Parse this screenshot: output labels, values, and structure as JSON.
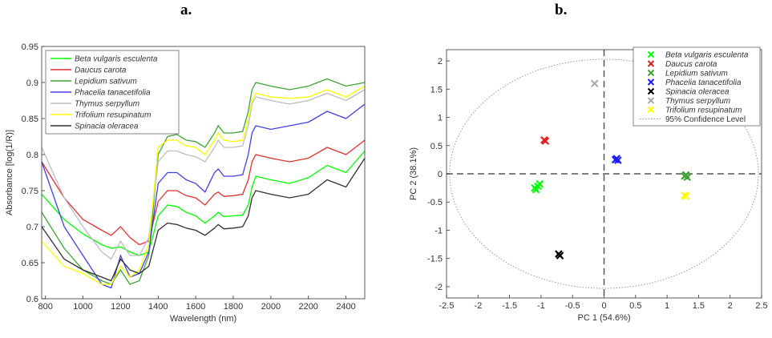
{
  "panels": {
    "a": "a.",
    "b": "b."
  },
  "chart_data": [
    {
      "type": "line",
      "xlabel": "Wavelength (nm)",
      "ylabel": "Absorbance [log(1/R)]",
      "xlim": [
        780,
        2500
      ],
      "ylim": [
        0.6,
        0.95
      ],
      "xticks": [
        800,
        1000,
        1200,
        1400,
        1600,
        1800,
        2000,
        2200,
        2400
      ],
      "yticks": [
        0.6,
        0.65,
        0.7,
        0.75,
        0.8,
        0.85,
        0.9,
        0.95
      ],
      "legend_position": "top-left",
      "series": [
        {
          "name": "Beta vulgaris esculenta",
          "color": "#00ff00",
          "x": [
            780,
            900,
            1000,
            1100,
            1150,
            1200,
            1250,
            1300,
            1350,
            1400,
            1450,
            1500,
            1550,
            1600,
            1650,
            1700,
            1720,
            1750,
            1800,
            1850,
            1880,
            1900,
            1920,
            2000,
            2100,
            2200,
            2300,
            2400,
            2500
          ],
          "y": [
            0.745,
            0.71,
            0.69,
            0.675,
            0.67,
            0.672,
            0.665,
            0.66,
            0.665,
            0.715,
            0.73,
            0.728,
            0.72,
            0.715,
            0.705,
            0.715,
            0.72,
            0.714,
            0.715,
            0.716,
            0.73,
            0.755,
            0.77,
            0.765,
            0.76,
            0.768,
            0.785,
            0.775,
            0.805
          ]
        },
        {
          "name": "Daucus carota",
          "color": "#e03030",
          "x": [
            780,
            900,
            1000,
            1100,
            1150,
            1200,
            1250,
            1300,
            1350,
            1400,
            1450,
            1500,
            1550,
            1600,
            1650,
            1700,
            1720,
            1750,
            1800,
            1850,
            1880,
            1900,
            1920,
            2000,
            2100,
            2200,
            2300,
            2400,
            2500
          ],
          "y": [
            0.79,
            0.74,
            0.71,
            0.695,
            0.688,
            0.7,
            0.685,
            0.675,
            0.68,
            0.735,
            0.75,
            0.75,
            0.743,
            0.74,
            0.73,
            0.745,
            0.748,
            0.742,
            0.743,
            0.745,
            0.765,
            0.79,
            0.8,
            0.795,
            0.79,
            0.795,
            0.81,
            0.8,
            0.82
          ]
        },
        {
          "name": "Lepidium sativum",
          "color": "#3fa335",
          "x": [
            780,
            900,
            1000,
            1100,
            1150,
            1200,
            1250,
            1300,
            1350,
            1400,
            1450,
            1500,
            1550,
            1600,
            1650,
            1700,
            1720,
            1750,
            1800,
            1850,
            1880,
            1900,
            1920,
            2000,
            2100,
            2200,
            2300,
            2400,
            2500
          ],
          "y": [
            0.72,
            0.67,
            0.64,
            0.625,
            0.62,
            0.64,
            0.62,
            0.625,
            0.66,
            0.8,
            0.825,
            0.828,
            0.82,
            0.818,
            0.81,
            0.83,
            0.84,
            0.83,
            0.83,
            0.832,
            0.86,
            0.89,
            0.9,
            0.895,
            0.89,
            0.895,
            0.905,
            0.895,
            0.9
          ]
        },
        {
          "name": "Phacelia tanacetifolia",
          "color": "#4040e0",
          "x": [
            780,
            900,
            1000,
            1100,
            1150,
            1200,
            1250,
            1300,
            1350,
            1400,
            1450,
            1500,
            1550,
            1600,
            1650,
            1700,
            1720,
            1750,
            1800,
            1850,
            1880,
            1900,
            1920,
            2000,
            2100,
            2200,
            2300,
            2400,
            2500
          ],
          "y": [
            0.79,
            0.7,
            0.66,
            0.62,
            0.615,
            0.66,
            0.63,
            0.635,
            0.665,
            0.76,
            0.775,
            0.775,
            0.765,
            0.76,
            0.748,
            0.775,
            0.78,
            0.77,
            0.77,
            0.772,
            0.8,
            0.83,
            0.84,
            0.835,
            0.84,
            0.845,
            0.86,
            0.85,
            0.87
          ]
        },
        {
          "name": "Thymus serpyllum",
          "color": "#bdbdbd",
          "x": [
            780,
            900,
            1000,
            1100,
            1150,
            1200,
            1250,
            1300,
            1350,
            1400,
            1450,
            1500,
            1550,
            1600,
            1650,
            1700,
            1720,
            1750,
            1800,
            1850,
            1880,
            1900,
            1920,
            2000,
            2100,
            2200,
            2300,
            2400,
            2500
          ],
          "y": [
            0.81,
            0.74,
            0.7,
            0.665,
            0.655,
            0.68,
            0.66,
            0.66,
            0.685,
            0.79,
            0.805,
            0.805,
            0.8,
            0.797,
            0.79,
            0.81,
            0.82,
            0.81,
            0.81,
            0.812,
            0.84,
            0.87,
            0.88,
            0.875,
            0.87,
            0.875,
            0.885,
            0.875,
            0.89
          ]
        },
        {
          "name": "Trifolium resupinatum",
          "color": "#ffff00",
          "x": [
            780,
            900,
            1000,
            1100,
            1150,
            1200,
            1250,
            1300,
            1350,
            1400,
            1450,
            1500,
            1550,
            1600,
            1650,
            1700,
            1720,
            1750,
            1800,
            1850,
            1880,
            1900,
            1920,
            2000,
            2100,
            2200,
            2300,
            2400,
            2500
          ],
          "y": [
            0.68,
            0.645,
            0.635,
            0.62,
            0.62,
            0.645,
            0.63,
            0.64,
            0.675,
            0.81,
            0.82,
            0.82,
            0.812,
            0.81,
            0.8,
            0.82,
            0.83,
            0.82,
            0.818,
            0.82,
            0.85,
            0.875,
            0.885,
            0.88,
            0.878,
            0.88,
            0.89,
            0.88,
            0.895
          ]
        },
        {
          "name": "Spinacia oleracea",
          "color": "#303030",
          "x": [
            780,
            900,
            1000,
            1100,
            1150,
            1200,
            1250,
            1300,
            1350,
            1400,
            1450,
            1500,
            1550,
            1600,
            1650,
            1700,
            1720,
            1750,
            1800,
            1850,
            1880,
            1900,
            1920,
            2000,
            2100,
            2200,
            2300,
            2400,
            2500
          ],
          "y": [
            0.7,
            0.655,
            0.64,
            0.63,
            0.625,
            0.655,
            0.64,
            0.635,
            0.645,
            0.695,
            0.705,
            0.703,
            0.698,
            0.695,
            0.688,
            0.698,
            0.703,
            0.697,
            0.698,
            0.7,
            0.715,
            0.74,
            0.75,
            0.745,
            0.74,
            0.745,
            0.765,
            0.755,
            0.795
          ]
        }
      ]
    },
    {
      "type": "scatter",
      "xlabel": "PC 1 (54.6%)",
      "ylabel": "PC 2 (38.1%)",
      "xlim": [
        -2.5,
        2.5
      ],
      "ylim": [
        -2.2,
        2.2
      ],
      "xticks": [
        -2.5,
        -2,
        -1.5,
        -1,
        -0.5,
        0,
        0.5,
        1,
        1.5,
        2,
        2.5
      ],
      "yticks": [
        -2,
        -1.5,
        -1,
        -0.5,
        0,
        0.5,
        1,
        1.5,
        2
      ],
      "legend_position": "top-right",
      "confidence_ellipse": {
        "name": "95% Confidence Level",
        "rx": 2.45,
        "ry": 2.03
      },
      "series": [
        {
          "name": "Beta vulgaris esculenta",
          "color": "#00ff00",
          "points": [
            [
              -1.05,
              -0.22
            ],
            [
              -1.08,
              -0.28
            ],
            [
              -1.02,
              -0.18
            ],
            [
              -1.1,
              -0.25
            ]
          ]
        },
        {
          "name": "Daucus carota",
          "color": "#e02020",
          "points": [
            [
              -0.95,
              0.6
            ],
            [
              -0.93,
              0.58
            ]
          ]
        },
        {
          "name": "Lepidium sativum",
          "color": "#3fa335",
          "points": [
            [
              1.3,
              -0.02
            ],
            [
              1.32,
              -0.06
            ],
            [
              1.28,
              -0.04
            ]
          ]
        },
        {
          "name": "Phacelia tanacetifolia",
          "color": "#1a1aff",
          "points": [
            [
              0.2,
              0.27
            ],
            [
              0.22,
              0.24
            ],
            [
              0.18,
              0.25
            ]
          ]
        },
        {
          "name": "Spinacia oleracea",
          "color": "#000000",
          "points": [
            [
              -0.72,
              -1.42
            ],
            [
              -0.7,
              -1.45
            ]
          ]
        },
        {
          "name": "Thymus serpyllum",
          "color": "#aaaaaa",
          "points": [
            [
              -0.15,
              1.6
            ]
          ]
        },
        {
          "name": "Trifolium resupinatum",
          "color": "#ffff00",
          "points": [
            [
              1.3,
              -0.4
            ],
            [
              1.28,
              -0.38
            ]
          ]
        }
      ]
    }
  ]
}
